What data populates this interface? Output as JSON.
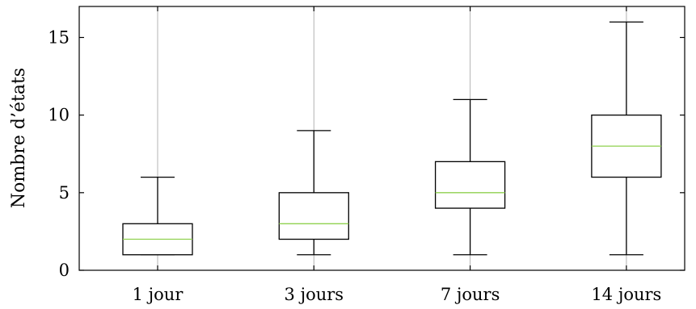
{
  "chart_data": {
    "type": "box",
    "ylabel": "Nombre d’états",
    "xlabel": "",
    "title": "",
    "ylim": [
      0,
      17
    ],
    "yticks": [
      0,
      5,
      10,
      15
    ],
    "grid": "vertical",
    "categories": [
      "1 jour",
      "3 jours",
      "7 jours",
      "14 jours"
    ],
    "boxes": [
      {
        "category": "1 jour",
        "min": 1,
        "q1": 1,
        "median": 2,
        "q3": 3,
        "max": 6
      },
      {
        "category": "3 jours",
        "min": 1,
        "q1": 2,
        "median": 3,
        "q3": 5,
        "max": 9
      },
      {
        "category": "7 jours",
        "min": 1,
        "q1": 4,
        "median": 5,
        "q3": 7,
        "max": 11
      },
      {
        "category": "14 jours",
        "min": 1,
        "q1": 6,
        "median": 8,
        "q3": 10,
        "max": 16
      }
    ],
    "colors": {
      "box": "#000000",
      "median": "#8fd14f",
      "grid": "#b3b3b3"
    }
  }
}
